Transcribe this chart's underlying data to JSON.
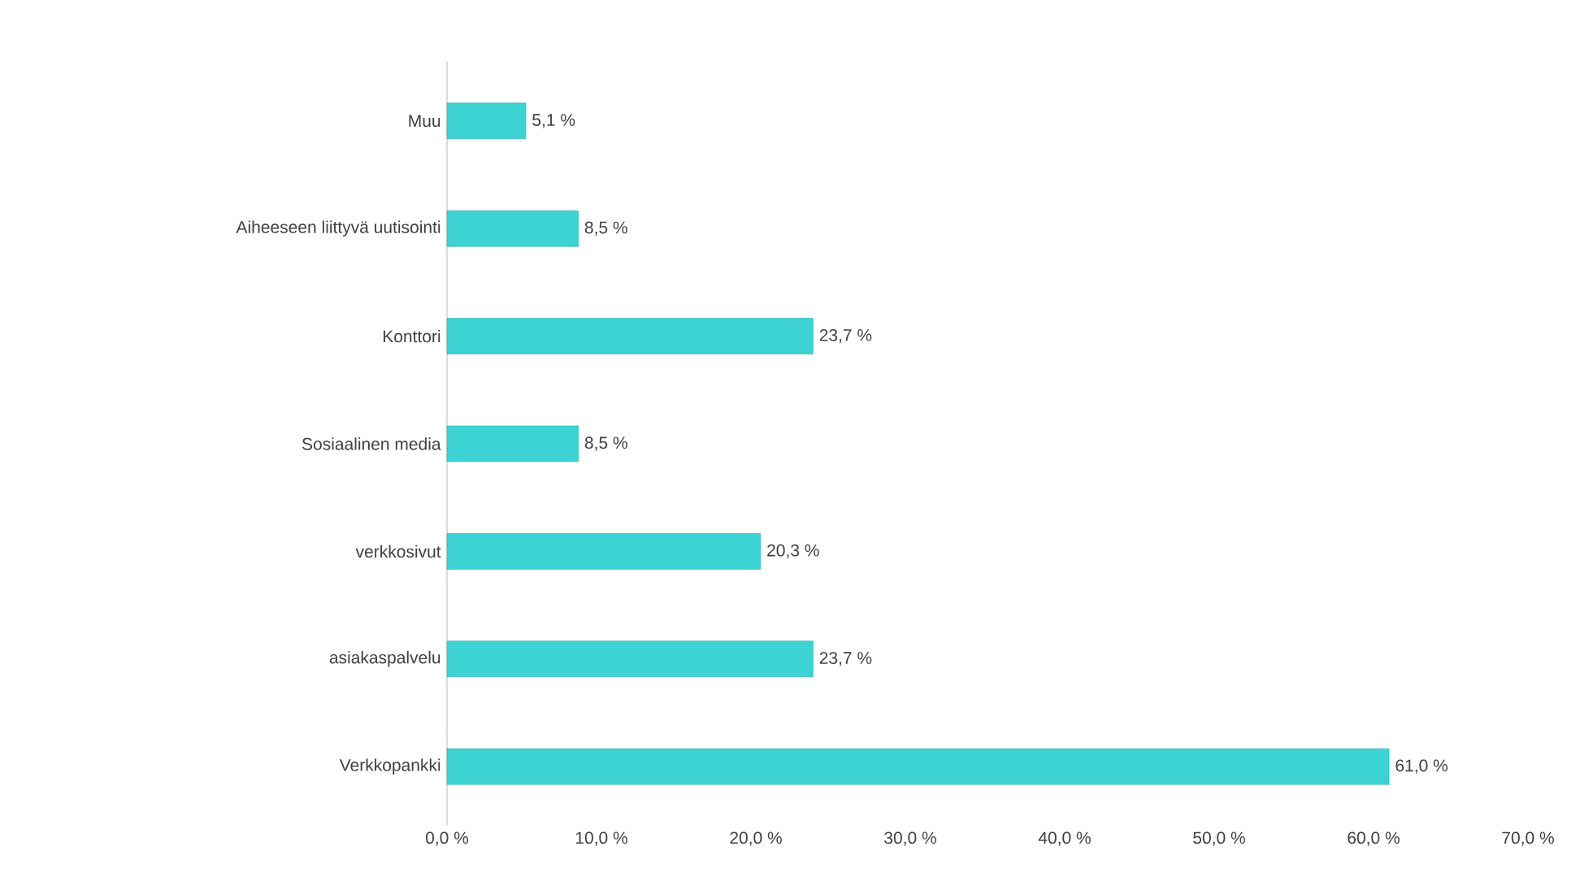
{
  "chart_data": {
    "type": "bar",
    "orientation": "horizontal",
    "categories": [
      "Muu",
      "Aiheeseen liittyvä uutisointi",
      "Konttori",
      "Sosiaalinen media",
      "verkkosivut",
      "asiakaspalvelu",
      "Verkkopankki"
    ],
    "values": [
      5.1,
      8.5,
      23.7,
      8.5,
      20.3,
      23.7,
      61.0
    ],
    "value_labels": [
      "5,1 %",
      "8,5 %",
      "23,7 %",
      "8,5 %",
      "20,3 %",
      "23,7 %",
      "61,0 %"
    ],
    "color": "#3dd3d3",
    "xlim": [
      0,
      70
    ],
    "xticks": [
      {
        "value": 0,
        "label": "0,0 %"
      },
      {
        "value": 10,
        "label": "10,0 %"
      },
      {
        "value": 20,
        "label": "20,0 %"
      },
      {
        "value": 30,
        "label": "30,0 %"
      },
      {
        "value": 40,
        "label": "40,0 %"
      },
      {
        "value": 50,
        "label": "50,0 %"
      },
      {
        "value": 60,
        "label": "60,0 %"
      },
      {
        "value": 70,
        "label": "70,0 %"
      }
    ],
    "grid": false
  }
}
